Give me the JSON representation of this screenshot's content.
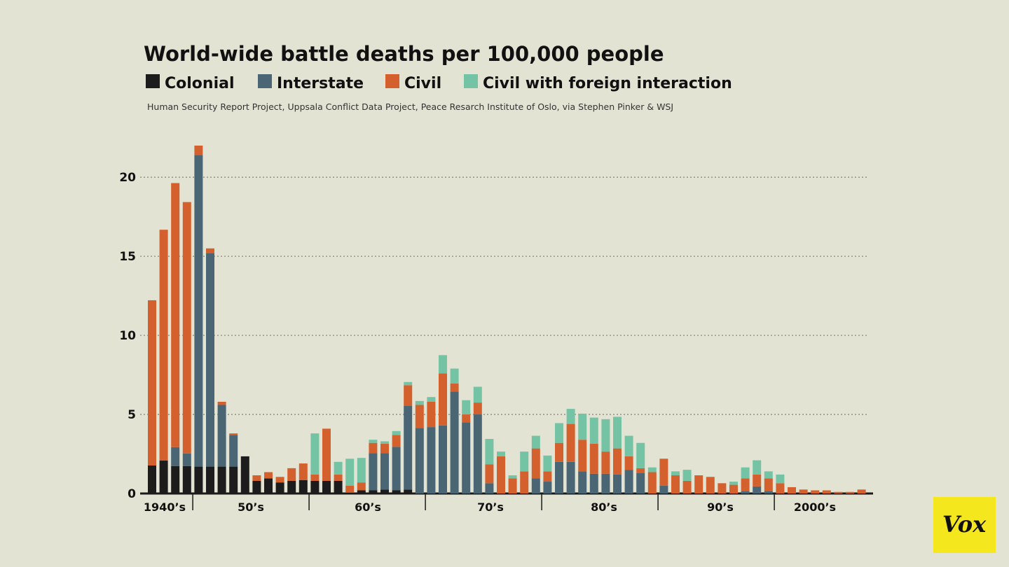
{
  "chart_data": {
    "type": "stacked-bar",
    "title": "World-wide battle deaths per 100,000 people",
    "source": "Human Security Report Project, Uppsala Conflict Data Project, Peace Resarch Institute of Oslo, via Stephen Pinker & WSJ",
    "categories": [
      null,
      null,
      null,
      null,
      null,
      null,
      null,
      null,
      null,
      null,
      null,
      null,
      null,
      null,
      null,
      null,
      null,
      null,
      null,
      null,
      null,
      null,
      null,
      null,
      null,
      null,
      null,
      null,
      null,
      null,
      null,
      null,
      null,
      null,
      null,
      null,
      null,
      null,
      null,
      null,
      null,
      null,
      null,
      null,
      null,
      null,
      null,
      null,
      null,
      null,
      null,
      null,
      null,
      null,
      null,
      null,
      null,
      null,
      null,
      null,
      null,
      null
    ],
    "decade_labels": [
      "1940’s",
      "50’s",
      "60’s",
      "70’s",
      "80’s",
      "90’s",
      "2000’s"
    ],
    "ylim": [
      0,
      22
    ],
    "yticks": [
      0,
      5,
      10,
      15,
      20
    ],
    "grid": true,
    "series": [
      {
        "name": "Colonial",
        "color": "#1c1c1c",
        "values": [
          1.77,
          2.08,
          1.73,
          1.73,
          1.7,
          1.7,
          1.7,
          1.7,
          2.35,
          0.8,
          0.95,
          0.7,
          0.8,
          0.85,
          0.8,
          0.8,
          0.8,
          0.05,
          0.2,
          0.2,
          0.25,
          0.2,
          0.25,
          0,
          0,
          0,
          0,
          0,
          0,
          0,
          0,
          0,
          0,
          0,
          0,
          0,
          0,
          0,
          0,
          0,
          0,
          0,
          0,
          0,
          0,
          0,
          0,
          0,
          0,
          0,
          0,
          0,
          0,
          0,
          0,
          0,
          0,
          0,
          0,
          0,
          0,
          0
        ]
      },
      {
        "name": "Interstate",
        "color": "#4a6574",
        "values": [
          0,
          0,
          1.2,
          0.8,
          19.7,
          13.5,
          3.9,
          2.0,
          0,
          0,
          0,
          0,
          0,
          0,
          0,
          0,
          0,
          0,
          0,
          2.35,
          2.3,
          2.75,
          5.3,
          4.15,
          4.2,
          4.3,
          6.45,
          4.5,
          5.0,
          0.65,
          0,
          0,
          0,
          0.95,
          0.75,
          2.0,
          2.0,
          1.4,
          1.25,
          1.25,
          1.2,
          1.5,
          1.3,
          0,
          0.5,
          0,
          0,
          0,
          0,
          0,
          0,
          0.15,
          0.45,
          0.15,
          0,
          0,
          0,
          0,
          0,
          0,
          0,
          0
        ]
      },
      {
        "name": "Civil",
        "color": "#d4612d",
        "values": [
          10.45,
          14.6,
          16.7,
          15.9,
          0.6,
          0.3,
          0.2,
          0.1,
          0,
          0.35,
          0.4,
          0.35,
          0.8,
          1.05,
          0.4,
          3.3,
          0.4,
          0.45,
          0.5,
          0.65,
          0.6,
          0.75,
          1.3,
          1.45,
          1.6,
          3.3,
          0.5,
          0.5,
          0.75,
          1.2,
          2.35,
          0.95,
          1.4,
          1.9,
          0.65,
          1.2,
          2.4,
          2.0,
          1.9,
          1.4,
          1.65,
          0.85,
          0.3,
          1.35,
          1.7,
          1.15,
          0.8,
          1.15,
          1.05,
          0.65,
          0.55,
          0.8,
          0.75,
          0.8,
          0.65,
          0.4,
          0.25,
          0.2,
          0.2,
          0.1,
          0.1,
          0.25
        ]
      },
      {
        "name": "Civil with foreign interaction",
        "color": "#74c3a5",
        "values": [
          0,
          0,
          0,
          0,
          0,
          0,
          0,
          0,
          0,
          0,
          0,
          0,
          0,
          0,
          2.6,
          0,
          0.8,
          1.7,
          1.55,
          0.2,
          0.15,
          0.25,
          0.2,
          0.25,
          0.3,
          1.15,
          0.95,
          0.9,
          1.0,
          1.6,
          0.3,
          0.2,
          1.25,
          0.8,
          1.0,
          1.25,
          0.95,
          1.65,
          1.65,
          2.05,
          2.0,
          1.3,
          1.6,
          0.3,
          0,
          0.25,
          0.7,
          0,
          0,
          0,
          0.2,
          0.7,
          0.9,
          0.45,
          0.55,
          0,
          0,
          0,
          0,
          0,
          0,
          0
        ]
      }
    ]
  },
  "logo": "Vox"
}
